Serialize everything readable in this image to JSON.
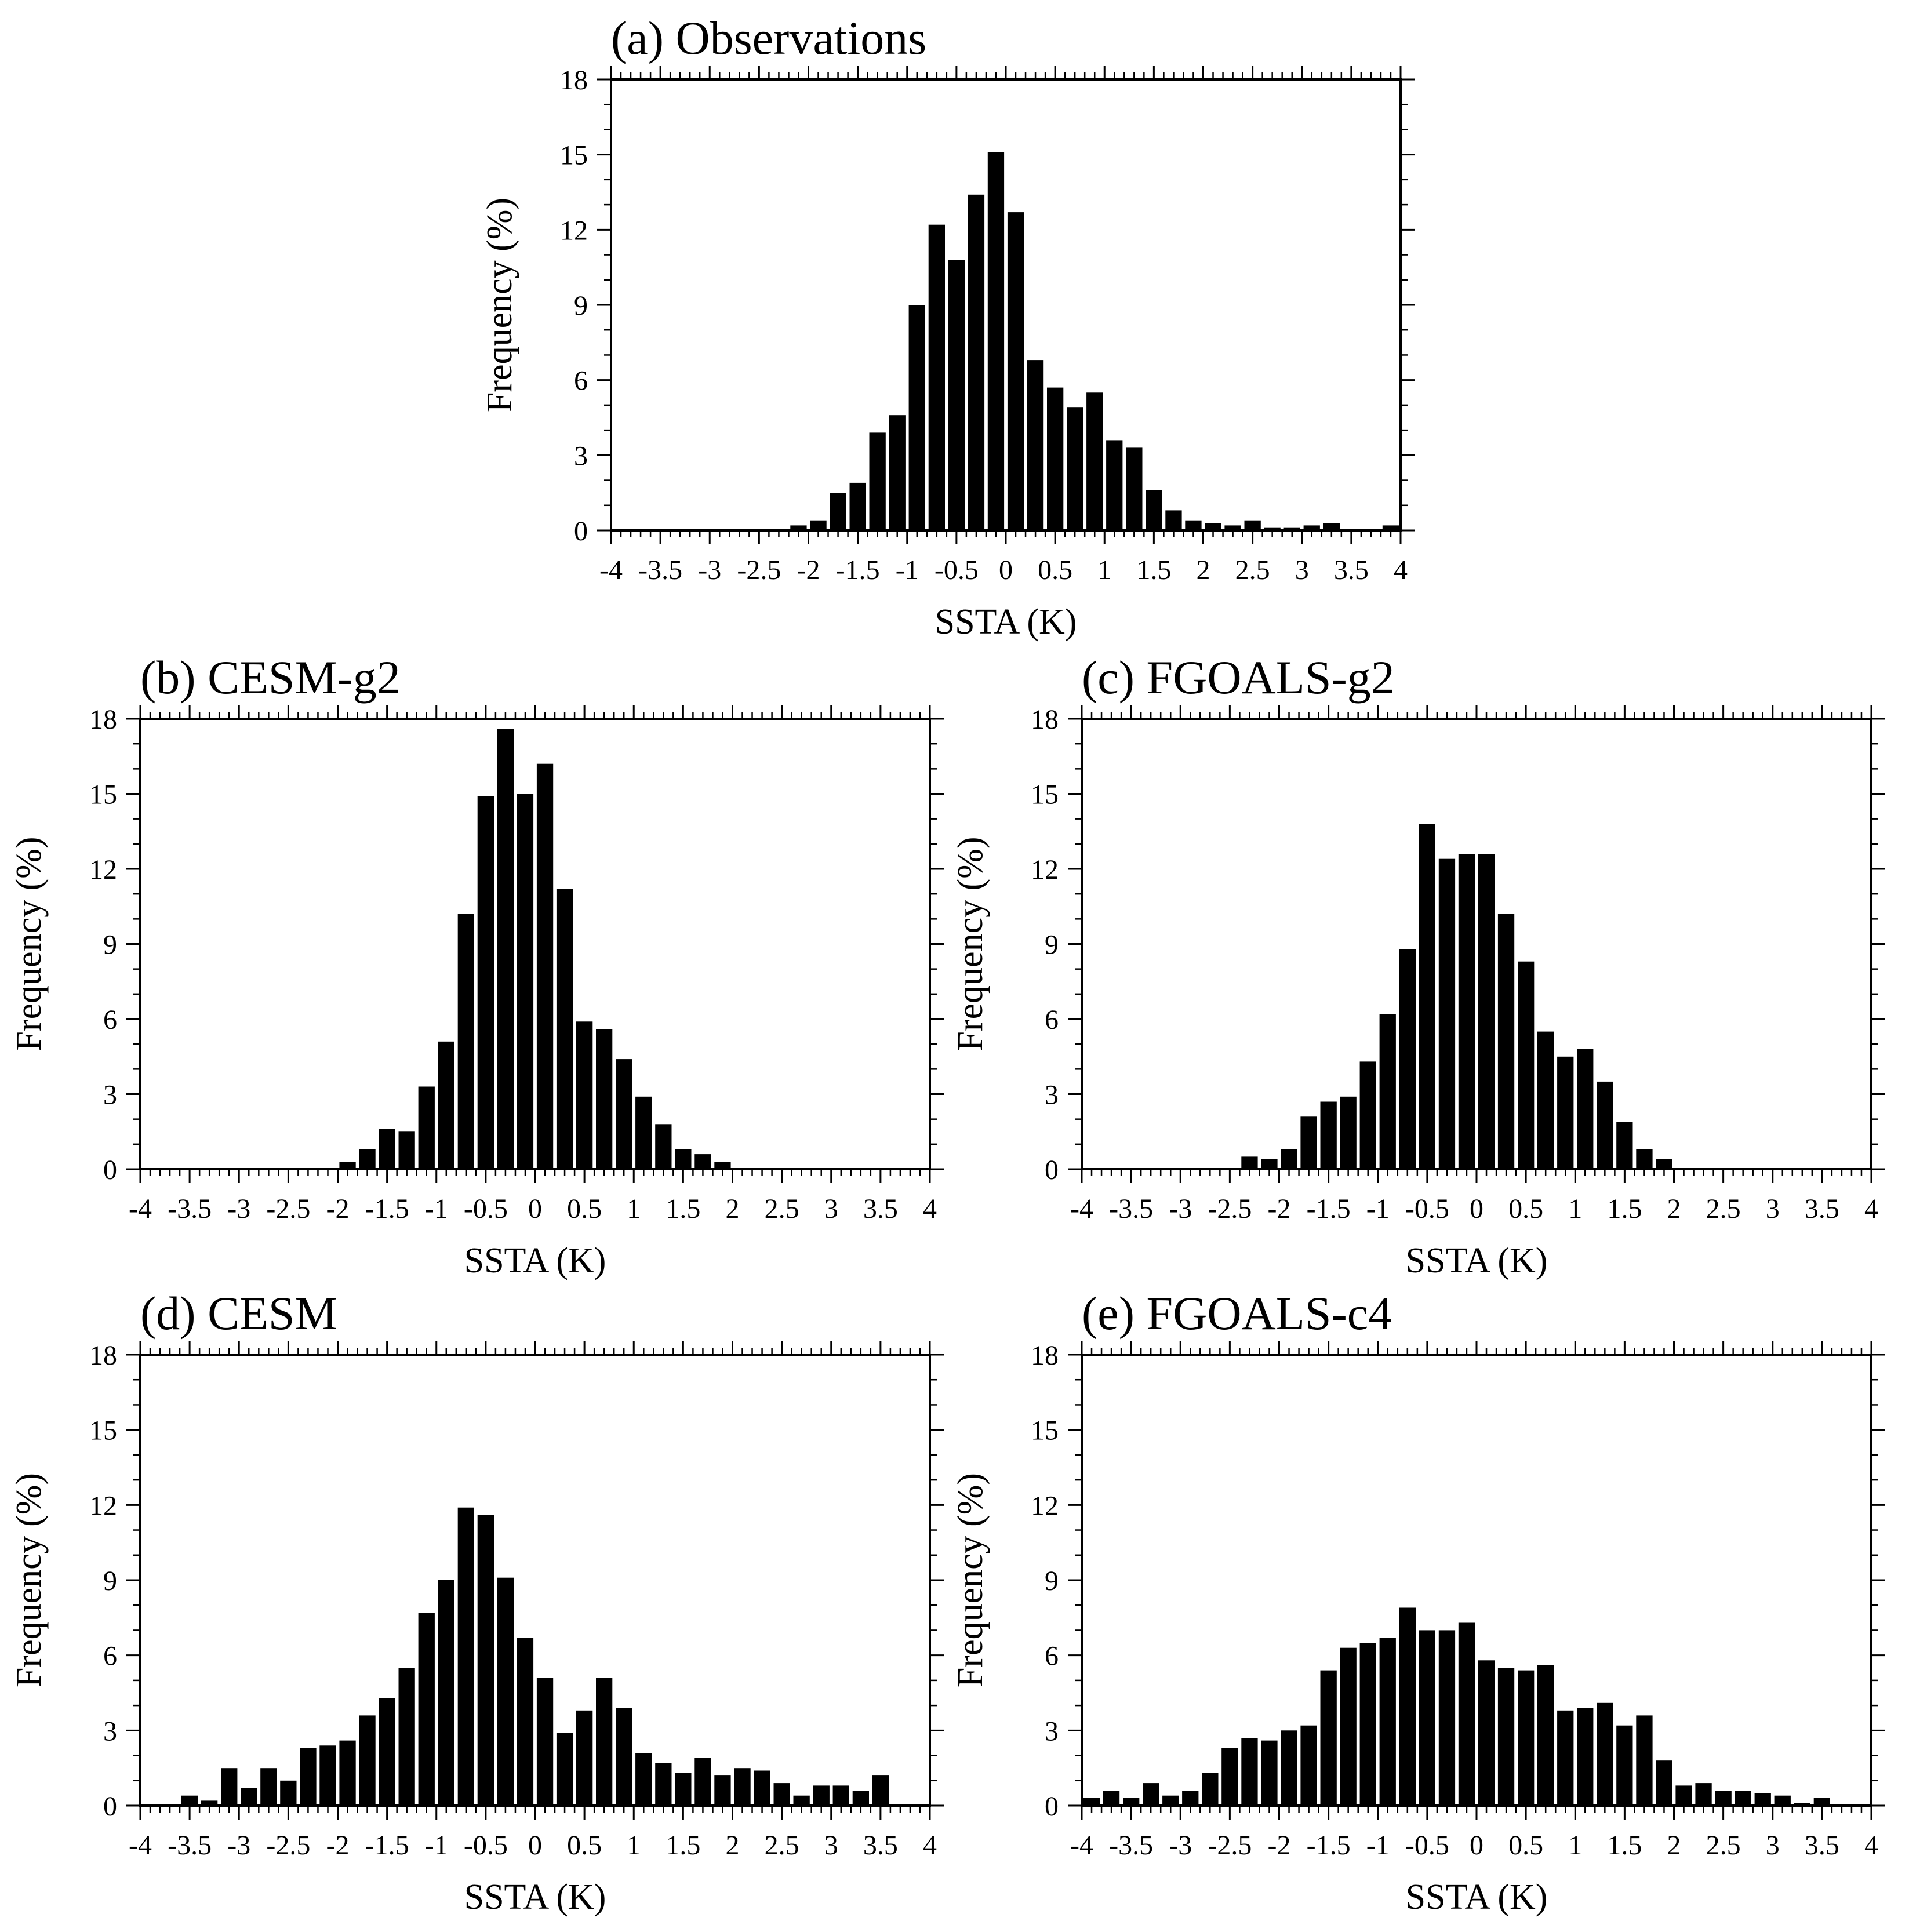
{
  "chart_data": [
    {
      "type": "bar",
      "title": "(a) Observations",
      "xlabel": "SSTA (K)",
      "ylabel": "Frequency (%)",
      "xlim": [
        -4,
        4
      ],
      "ylim": [
        0,
        18
      ],
      "xticks": [
        "-4",
        "-3.5",
        "-3",
        "-2.5",
        "-2",
        "-1.5",
        "-1",
        "-0.5",
        "0",
        "0.5",
        "1",
        "1.5",
        "2",
        "2.5",
        "3",
        "3.5",
        "4"
      ],
      "yticks": [
        "0",
        "3",
        "6",
        "9",
        "12",
        "15",
        "18"
      ],
      "bin_width": 0.2,
      "x": [
        -2.1,
        -1.9,
        -1.7,
        -1.5,
        -1.3,
        -1.1,
        -0.9,
        -0.7,
        -0.5,
        -0.3,
        -0.1,
        0.1,
        0.3,
        0.5,
        0.7,
        0.9,
        1.1,
        1.3,
        1.5,
        1.7,
        1.9,
        2.1,
        2.3,
        2.5,
        2.7,
        2.9,
        3.1,
        3.3,
        3.5,
        3.7,
        3.9
      ],
      "values": [
        0.2,
        0.4,
        1.5,
        1.9,
        3.9,
        4.6,
        9.0,
        12.2,
        10.8,
        13.4,
        15.1,
        12.7,
        6.8,
        5.7,
        4.9,
        5.5,
        3.6,
        3.3,
        1.6,
        0.8,
        0.4,
        0.3,
        0.2,
        0.4,
        0.1,
        0.1,
        0.2,
        0.3,
        0.0,
        0.0,
        0.2
      ]
    },
    {
      "type": "bar",
      "title": "(b) CESM-g2",
      "xlabel": "SSTA (K)",
      "ylabel": "Frequency (%)",
      "xlim": [
        -4,
        4
      ],
      "ylim": [
        0,
        18
      ],
      "xticks": [
        "-4",
        "-3.5",
        "-3",
        "-2.5",
        "-2",
        "-1.5",
        "-1",
        "-0.5",
        "0",
        "0.5",
        "1",
        "1.5",
        "2",
        "2.5",
        "3",
        "3.5",
        "4"
      ],
      "yticks": [
        "0",
        "3",
        "6",
        "9",
        "12",
        "15",
        "18"
      ],
      "bin_width": 0.2,
      "x": [
        -1.9,
        -1.7,
        -1.5,
        -1.3,
        -1.1,
        -0.9,
        -0.7,
        -0.5,
        -0.3,
        -0.1,
        0.1,
        0.3,
        0.5,
        0.7,
        0.9,
        1.1,
        1.3,
        1.5,
        1.7,
        1.9,
        2.1
      ],
      "values": [
        0.3,
        0.8,
        1.6,
        1.5,
        3.3,
        5.1,
        10.2,
        14.9,
        17.6,
        15.0,
        16.2,
        11.2,
        5.9,
        5.6,
        4.4,
        2.9,
        1.8,
        0.8,
        0.6,
        0.3,
        0.0
      ]
    },
    {
      "type": "bar",
      "title": "(c) FGOALS-g2",
      "xlabel": "SSTA (K)",
      "ylabel": "Frequency (%)",
      "xlim": [
        -4,
        4
      ],
      "ylim": [
        0,
        18
      ],
      "xticks": [
        "-4",
        "-3.5",
        "-3",
        "-2.5",
        "-2",
        "-1.5",
        "-1",
        "-0.5",
        "0",
        "0.5",
        "1",
        "1.5",
        "2",
        "2.5",
        "3",
        "3.5",
        "4"
      ],
      "yticks": [
        "0",
        "3",
        "6",
        "9",
        "12",
        "15",
        "18"
      ],
      "bin_width": 0.2,
      "x": [
        -2.3,
        -2.1,
        -1.9,
        -1.7,
        -1.5,
        -1.3,
        -1.1,
        -0.9,
        -0.7,
        -0.5,
        -0.3,
        -0.1,
        0.1,
        0.3,
        0.5,
        0.7,
        0.9,
        1.1,
        1.3,
        1.5,
        1.7,
        1.9,
        2.1
      ],
      "values": [
        0.5,
        0.4,
        0.8,
        2.1,
        2.7,
        2.9,
        4.3,
        6.2,
        8.8,
        13.8,
        12.4,
        12.6,
        12.6,
        10.2,
        8.3,
        5.5,
        4.5,
        4.8,
        3.5,
        1.9,
        0.8,
        0.4,
        0.0
      ]
    },
    {
      "type": "bar",
      "title": "(d) CESM",
      "xlabel": "SSTA (K)",
      "ylabel": "Frequency (%)",
      "xlim": [
        -4,
        4
      ],
      "ylim": [
        0,
        18
      ],
      "xticks": [
        "-4",
        "-3.5",
        "-3",
        "-2.5",
        "-2",
        "-1.5",
        "-1",
        "-0.5",
        "0",
        "0.5",
        "1",
        "1.5",
        "2",
        "2.5",
        "3",
        "3.5",
        "4"
      ],
      "yticks": [
        "0",
        "3",
        "6",
        "9",
        "12",
        "15",
        "18"
      ],
      "bin_width": 0.2,
      "x": [
        -3.5,
        -3.3,
        -3.1,
        -2.9,
        -2.7,
        -2.5,
        -2.3,
        -2.1,
        -1.9,
        -1.7,
        -1.5,
        -1.3,
        -1.1,
        -0.9,
        -0.7,
        -0.5,
        -0.3,
        -0.1,
        0.1,
        0.3,
        0.5,
        0.7,
        0.9,
        1.1,
        1.3,
        1.5,
        1.7,
        1.9,
        2.1,
        2.3,
        2.5,
        2.7,
        2.9,
        3.1,
        3.3,
        3.5,
        3.7,
        3.9
      ],
      "values": [
        0.4,
        0.2,
        1.5,
        0.7,
        1.5,
        1.0,
        2.3,
        2.4,
        2.6,
        3.6,
        4.3,
        5.5,
        7.7,
        9.0,
        11.9,
        11.6,
        9.1,
        6.7,
        5.1,
        2.9,
        3.8,
        5.1,
        3.9,
        2.1,
        1.7,
        1.3,
        1.9,
        1.2,
        1.5,
        1.4,
        0.9,
        0.4,
        0.8,
        0.8,
        0.6,
        1.2,
        0.0,
        0.0
      ]
    },
    {
      "type": "bar",
      "title": "(e) FGOALS-c4",
      "xlabel": "SSTA (K)",
      "ylabel": "Frequency (%)",
      "xlim": [
        -4,
        4
      ],
      "ylim": [
        0,
        18
      ],
      "xticks": [
        "-4",
        "-3.5",
        "-3",
        "-2.5",
        "-2",
        "-1.5",
        "-1",
        "-0.5",
        "0",
        "0.5",
        "1",
        "1.5",
        "2",
        "2.5",
        "3",
        "3.5",
        "4"
      ],
      "yticks": [
        "0",
        "3",
        "6",
        "9",
        "12",
        "15",
        "18"
      ],
      "bin_width": 0.2,
      "x": [
        -3.9,
        -3.7,
        -3.5,
        -3.3,
        -3.1,
        -2.9,
        -2.7,
        -2.5,
        -2.3,
        -2.1,
        -1.9,
        -1.7,
        -1.5,
        -1.3,
        -1.1,
        -0.9,
        -0.7,
        -0.5,
        -0.3,
        -0.1,
        0.1,
        0.3,
        0.5,
        0.7,
        0.9,
        1.1,
        1.3,
        1.5,
        1.7,
        1.9,
        2.1,
        2.3,
        2.5,
        2.7,
        2.9,
        3.1,
        3.3,
        3.5,
        3.7,
        3.9
      ],
      "values": [
        0.3,
        0.6,
        0.3,
        0.9,
        0.4,
        0.6,
        1.3,
        2.3,
        2.7,
        2.6,
        3.0,
        3.2,
        5.4,
        6.3,
        6.5,
        6.7,
        7.9,
        7.0,
        7.0,
        7.3,
        5.8,
        5.5,
        5.4,
        5.6,
        3.8,
        3.9,
        4.1,
        3.2,
        3.6,
        1.8,
        0.8,
        0.9,
        0.6,
        0.6,
        0.5,
        0.4,
        0.1,
        0.3,
        0.0,
        0.0
      ]
    }
  ]
}
